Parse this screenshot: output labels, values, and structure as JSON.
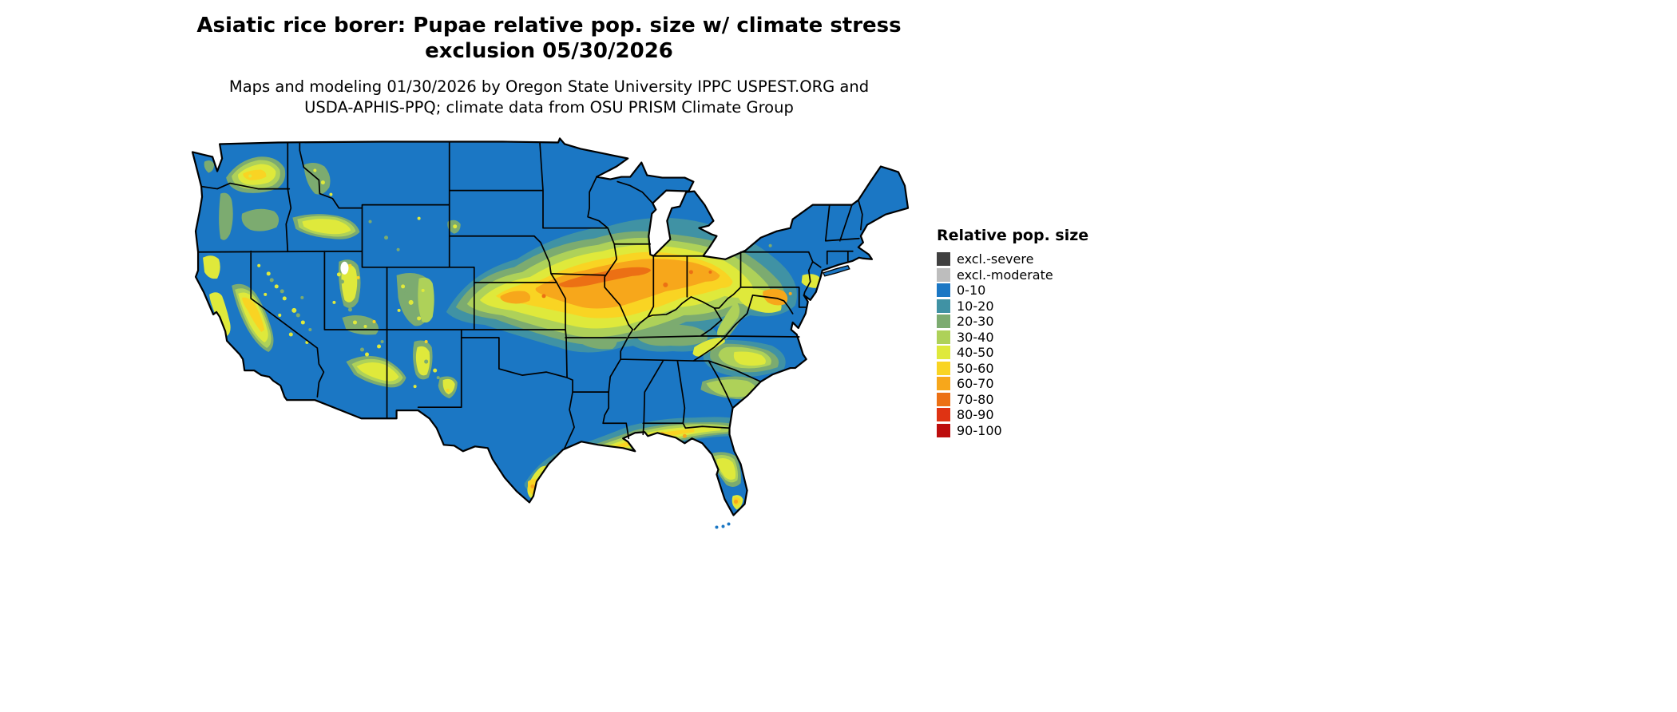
{
  "header": {
    "title_line1": "Asiatic rice borer: Pupae relative pop. size w/ climate stress",
    "title_line2": "exclusion 05/30/2026",
    "subtitle_line1": "Maps and modeling 01/30/2026 by Oregon State University IPPC USPEST.ORG and",
    "subtitle_line2": "USDA-APHIS-PPQ; climate data from OSU PRISM Climate Group"
  },
  "legend": {
    "title": "Relative pop. size",
    "items": [
      {
        "label": "excl.-severe",
        "color": "#404040"
      },
      {
        "label": "excl.-moderate",
        "color": "#bdbdbd"
      },
      {
        "label": "0-10",
        "color": "#1b77c4"
      },
      {
        "label": "10-20",
        "color": "#4092a4"
      },
      {
        "label": "20-30",
        "color": "#7cab70"
      },
      {
        "label": "30-40",
        "color": "#aed159"
      },
      {
        "label": "40-50",
        "color": "#dfe93b"
      },
      {
        "label": "50-60",
        "color": "#f9d423"
      },
      {
        "label": "60-70",
        "color": "#f7a71b"
      },
      {
        "label": "70-80",
        "color": "#ec7014"
      },
      {
        "label": "80-90",
        "color": "#df3313"
      },
      {
        "label": "90-100",
        "color": "#bd0d0d"
      }
    ]
  }
}
